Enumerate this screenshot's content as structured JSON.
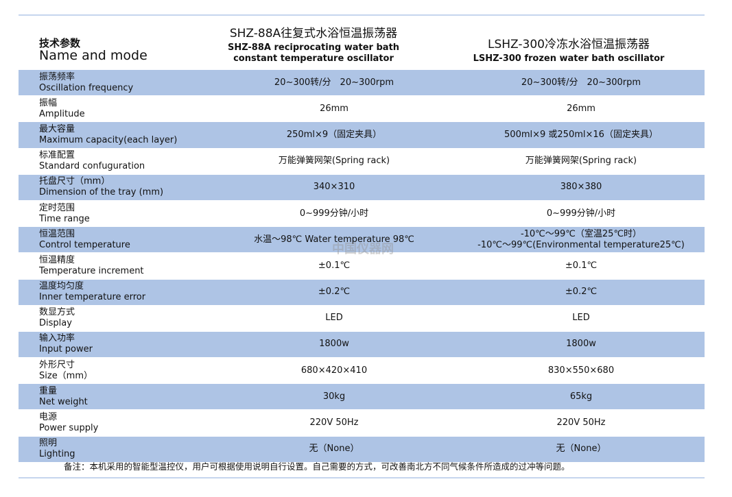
{
  "header": {
    "param_zh": "技术参数",
    "param_en": "Name and mode",
    "col1_title": "SHZ-88A往复式水浴恒温振荡器",
    "col1_sub1": "SHZ-88A reciprocating water bath",
    "col1_sub2": "constant temperature oscillator",
    "col2_title": "LSHZ-300冷冻水浴恒温振荡器",
    "col2_sub1": "LSHZ-300 frozen water bath oscillator"
  },
  "rows": [
    {
      "zh": "振荡频率",
      "en": "Oscillation frequency",
      "a": "20~300转/分　20~300rpm",
      "b": "20~300转/分　20~300rpm",
      "b2": ""
    },
    {
      "zh": "振幅",
      "en": "Amplitude",
      "a": "26mm",
      "b": "26mm",
      "b2": ""
    },
    {
      "zh": "最大容量",
      "en": "Maximum capacity(each layer)",
      "a": "250ml×9（固定夹具）",
      "b": "500ml×9 或250ml×16（固定夹具）",
      "b2": ""
    },
    {
      "zh": "标准配置",
      "en": "Standard confuguration",
      "a": "万能弹簧网架(Spring rack)",
      "b": "万能弹簧网架(Spring rack)",
      "b2": ""
    },
    {
      "zh": "托盘尺寸（mm）",
      "en": "Dimension of the tray (mm)",
      "a": "340×310",
      "b": "380×380",
      "b2": ""
    },
    {
      "zh": "定时范围",
      "en": "Time range",
      "a": "0~999分钟/小时",
      "b": "0~999分钟/小时",
      "b2": ""
    },
    {
      "zh": "恒温范围",
      "en": "Control temperature",
      "a": "水温～98℃  Water temperature 98℃",
      "b": "-10℃～99℃（室温25℃时）",
      "b2": "-10℃～99℃(Environmental temperature25℃)"
    },
    {
      "zh": "恒温精度",
      "en": "Temperature increment",
      "a": "±0.1℃",
      "b": "±0.1℃",
      "b2": ""
    },
    {
      "zh": "温度均匀度",
      "en": "Inner temperature error",
      "a": "±0.2℃",
      "b": "±0.2℃",
      "b2": ""
    },
    {
      "zh": "数显方式",
      "en": "Display",
      "a": "LED",
      "b": "LED",
      "b2": ""
    },
    {
      "zh": "输入功率",
      "en": "Input power",
      "a": "1800w",
      "b": "1800w",
      "b2": ""
    },
    {
      "zh": "外形尺寸",
      "en": "Size（mm）",
      "a": "680×420×410",
      "b": "830×550×680",
      "b2": ""
    },
    {
      "zh": "重量",
      "en": "Net weight",
      "a": "30kg",
      "b": "65kg",
      "b2": ""
    },
    {
      "zh": "电源",
      "en": "Power supply",
      "a": "220V  50Hz",
      "b": "220V  50Hz",
      "b2": ""
    },
    {
      "zh": "照明",
      "en": "Lighting",
      "a": "无（None）",
      "b": "无（None）",
      "b2": ""
    }
  ],
  "note": "备注：本机采用的智能型温控仪，用户可根据使用说明自行设置。自己需要的方式，可改善南北方不同气候条件所造成的过冲等问题。",
  "watermark": "中国仪器网",
  "colors": {
    "band": "#aec4e5",
    "rule": "#c5d5ee"
  }
}
